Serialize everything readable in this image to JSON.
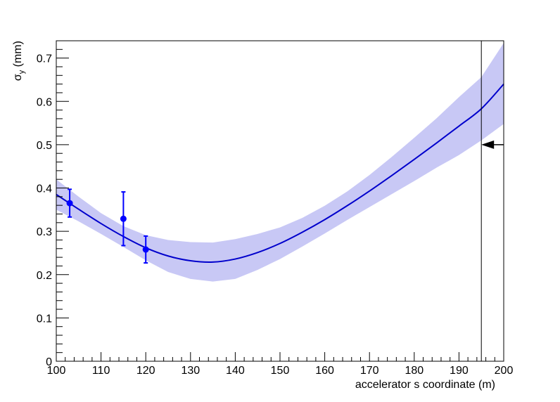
{
  "chart_data": {
    "type": "line",
    "title": "",
    "xlabel": "accelerator s coordinate (m)",
    "ylabel": {
      "symbol": "σ",
      "subscript": "y",
      "unit": " (mm)"
    },
    "xlim": [
      100,
      200
    ],
    "ylim": [
      0,
      0.74
    ],
    "x_ticks": [
      100,
      110,
      120,
      130,
      140,
      150,
      160,
      170,
      180,
      190,
      200
    ],
    "y_ticks": [
      0,
      0.1,
      0.2,
      0.3,
      0.4,
      0.5,
      0.6,
      0.7
    ],
    "x_tick_labels": [
      "100",
      "110",
      "120",
      "130",
      "140",
      "150",
      "160",
      "170",
      "180",
      "190",
      "200"
    ],
    "y_tick_labels": [
      "0",
      "0.1",
      "0.2",
      "0.3",
      "0.4",
      "0.5",
      "0.6",
      "0.7"
    ],
    "grid": false,
    "colors": {
      "fit": "#0000cc",
      "band": "#c8c8f5",
      "points": "#0000ff",
      "marker": "#000000"
    },
    "fit_curve": {
      "x": [
        100,
        105,
        110,
        115,
        120,
        125,
        130,
        135,
        140,
        145,
        150,
        155,
        160,
        165,
        170,
        175,
        180,
        185,
        190,
        195,
        200
      ],
      "y": [
        0.385,
        0.351,
        0.318,
        0.288,
        0.262,
        0.243,
        0.232,
        0.229,
        0.236,
        0.251,
        0.272,
        0.298,
        0.327,
        0.359,
        0.393,
        0.429,
        0.466,
        0.504,
        0.543,
        0.583,
        0.64
      ]
    },
    "uncertainty_band": {
      "x": [
        100,
        105,
        110,
        115,
        120,
        125,
        130,
        135,
        140,
        145,
        150,
        155,
        160,
        165,
        170,
        175,
        180,
        185,
        190,
        195,
        200
      ],
      "lower": [
        0.35,
        0.323,
        0.294,
        0.264,
        0.233,
        0.206,
        0.19,
        0.184,
        0.19,
        0.211,
        0.236,
        0.265,
        0.295,
        0.326,
        0.356,
        0.386,
        0.416,
        0.447,
        0.476,
        0.51,
        0.548
      ],
      "upper": [
        0.42,
        0.38,
        0.342,
        0.312,
        0.291,
        0.28,
        0.275,
        0.274,
        0.282,
        0.294,
        0.309,
        0.331,
        0.359,
        0.392,
        0.43,
        0.472,
        0.516,
        0.561,
        0.61,
        0.656,
        0.735
      ]
    },
    "points": [
      {
        "x": 103,
        "y": 0.365,
        "err": 0.032
      },
      {
        "x": 115,
        "y": 0.329,
        "err": 0.062
      },
      {
        "x": 120,
        "y": 0.258,
        "err": 0.031
      }
    ],
    "marker_line_x": 195,
    "arrow": {
      "x_from": 200,
      "x_to": 195,
      "y": 0.5
    }
  }
}
